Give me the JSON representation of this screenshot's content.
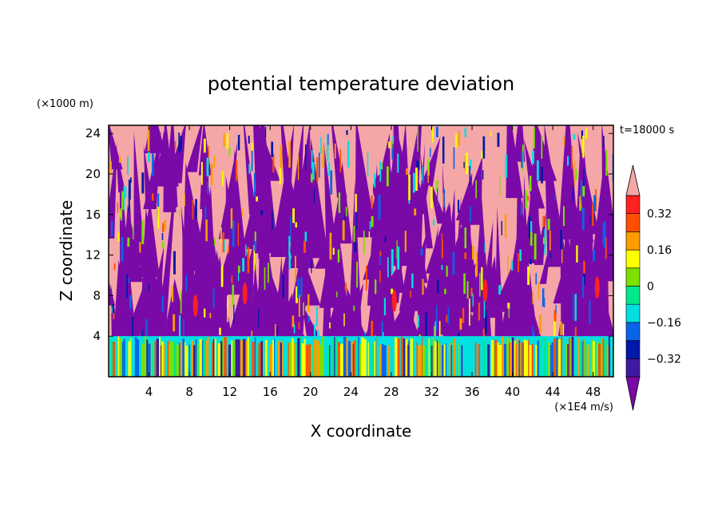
{
  "chart_data": {
    "type": "heatmap",
    "title": "potential temperature deviation",
    "xlabel": "X coordinate",
    "ylabel": "Z coordinate",
    "x_unit": "(×1E4 m/s)",
    "y_unit": "(×1000 m)",
    "time_label": "t=18000 s",
    "xlim": [
      0,
      50
    ],
    "ylim": [
      0,
      24.8
    ],
    "x_ticks": [
      4,
      8,
      12,
      16,
      20,
      24,
      28,
      32,
      36,
      40,
      44,
      48
    ],
    "y_ticks": [
      4,
      8,
      12,
      16,
      20,
      24
    ],
    "colorbar": {
      "levels": [
        -0.4,
        -0.32,
        -0.24,
        -0.16,
        -0.08,
        0,
        0.08,
        0.16,
        0.24,
        0.32,
        0.4
      ],
      "labeled_ticks": [
        -0.32,
        -0.16,
        0,
        0.16,
        0.32
      ],
      "tick_labels": [
        "−0.32",
        "−0.16",
        "0",
        "0.16",
        "0.32"
      ],
      "colors": [
        "#7a0aa8",
        "#3d1aa0",
        "#0018a8",
        "#0a64e8",
        "#00e0e0",
        "#00e88c",
        "#7ee000",
        "#ffff00",
        "#ff9c00",
        "#ff5000",
        "#ff2020",
        "#f5a7a7"
      ],
      "extend": "both"
    },
    "field_regions": [
      {
        "z_range": [
          0,
          4
        ],
        "dominant_values": [
          -0.16,
          -0.08,
          0,
          0.08,
          0.16
        ],
        "character": "narrow vertical streaks"
      },
      {
        "z_range": [
          4,
          24.8
        ],
        "dominant_values": [
          -0.45,
          0.45
        ],
        "character": "alternating plumes with thin transition bands"
      }
    ],
    "grid": false
  }
}
